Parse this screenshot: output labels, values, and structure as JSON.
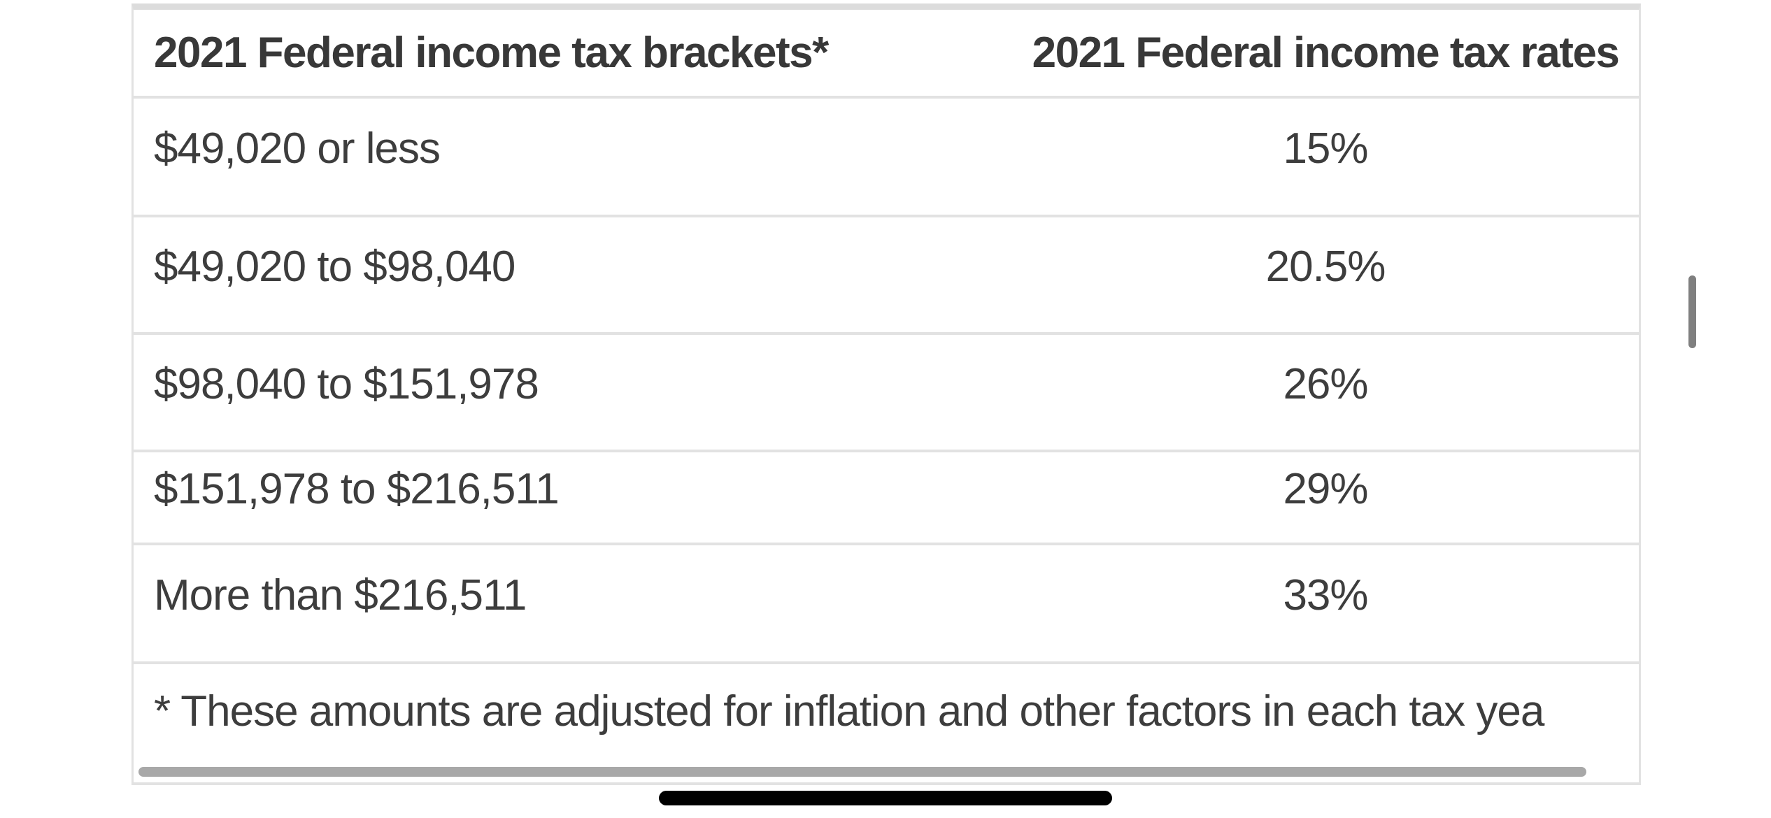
{
  "table": {
    "columns": [
      {
        "label": "2021 Federal income tax brackets*"
      },
      {
        "label": "2021 Federal income tax rates"
      }
    ],
    "rows": [
      {
        "bracket": "$49,020 or less",
        "rate": "15%"
      },
      {
        "bracket": "$49,020 to $98,040",
        "rate": "20.5%"
      },
      {
        "bracket": "$98,040 to $151,978",
        "rate": "26%"
      },
      {
        "bracket": "$151,978 to $216,511",
        "rate": "29%"
      },
      {
        "bracket": "More than $216,511",
        "rate": "33%"
      }
    ],
    "footnote": "* These amounts are adjusted for inflation and other factors in each tax yea"
  },
  "colors": {
    "text": "#3d3d3d",
    "header_text": "#383838",
    "row_border": "#e2e2e2",
    "top_border": "#dcdcdc",
    "horizontal_scrollbar": "#a8a8a8",
    "vertical_scrollbar": "#7f7f7f",
    "home_indicator": "#000000",
    "background": "#ffffff"
  }
}
